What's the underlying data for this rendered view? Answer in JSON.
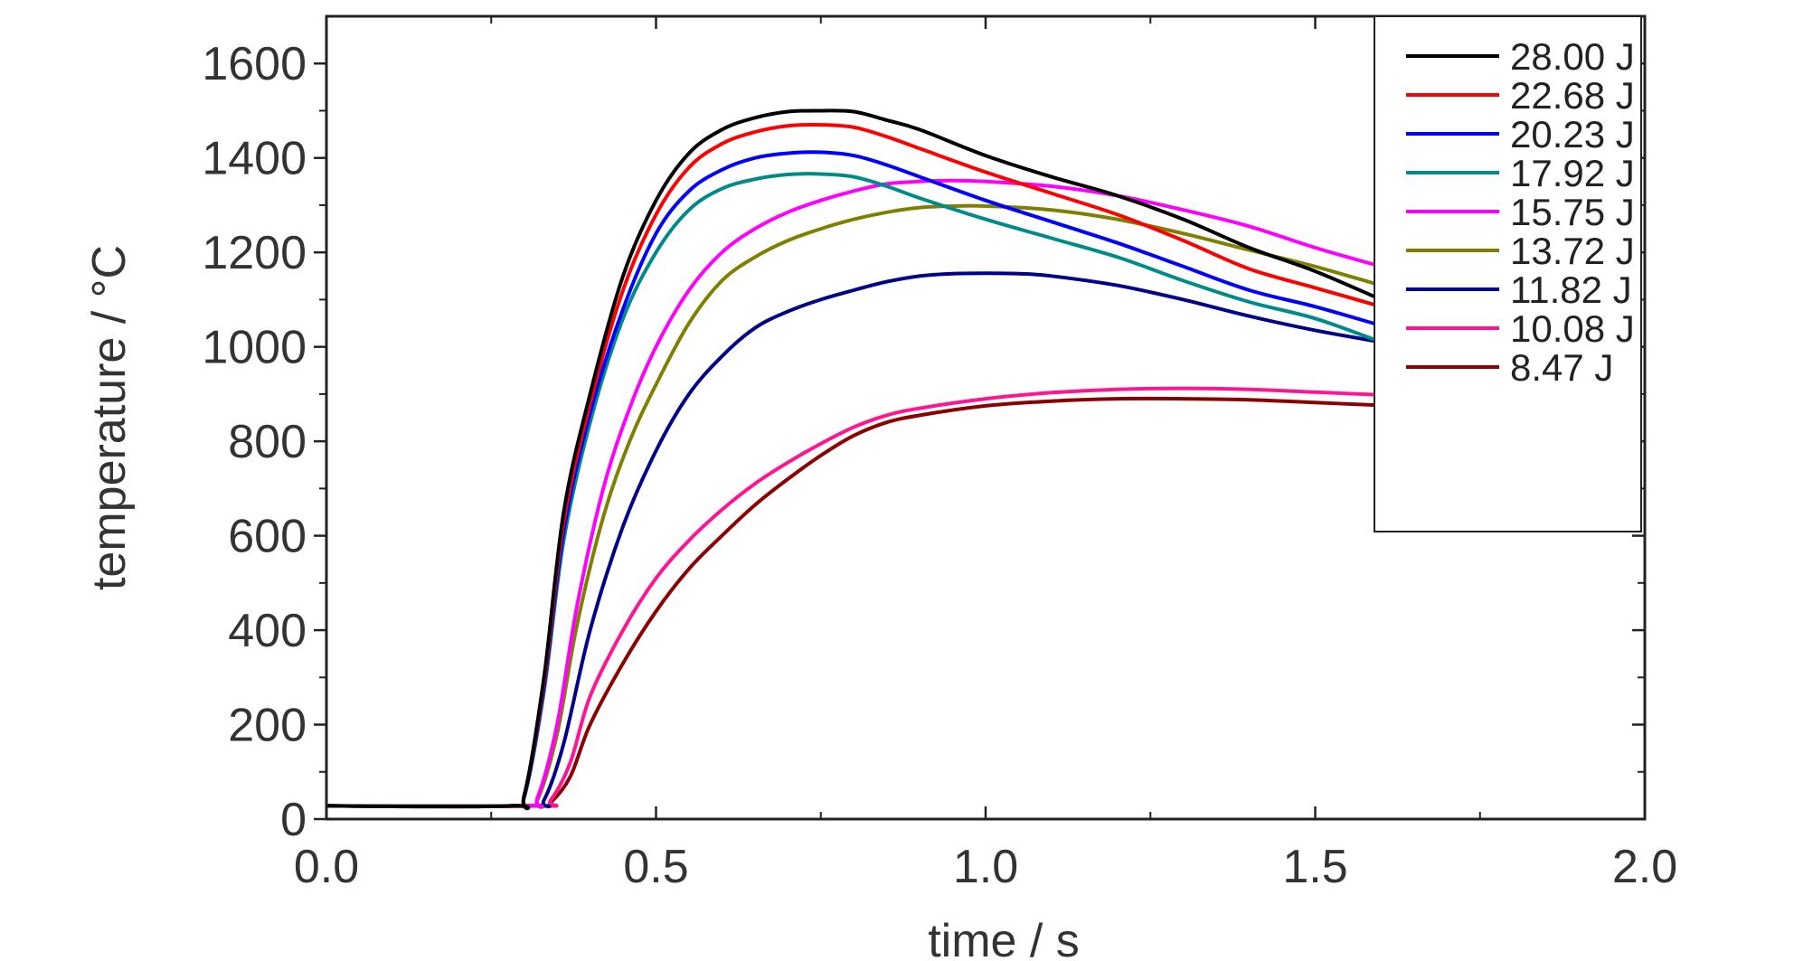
{
  "chart_data": {
    "type": "line",
    "title": "",
    "xlabel": "time / s",
    "ylabel": "temperature / °C",
    "xlim": [
      0,
      2
    ],
    "ylim": [
      0,
      1700
    ],
    "xticks": [
      0,
      0.5,
      1,
      1.5,
      2
    ],
    "xtick_labels": [
      "0.0",
      "0.5",
      "1.0",
      "1.5",
      "2.0"
    ],
    "yticks": [
      0,
      200,
      400,
      600,
      800,
      1000,
      1200,
      1400,
      1600
    ],
    "ytick_labels": [
      "0",
      "200",
      "400",
      "600",
      "800",
      "1000",
      "1200",
      "1400",
      "1600"
    ],
    "grid": false,
    "legend_position": "top-right",
    "series": [
      {
        "name": "28.00 J",
        "color": "#000000",
        "x": [
          0,
          0.28,
          0.3,
          0.33,
          0.36,
          0.4,
          0.45,
          0.5,
          0.55,
          0.6,
          0.65,
          0.7,
          0.75,
          0.8,
          0.85,
          0.9,
          1.0,
          1.1,
          1.2,
          1.3,
          1.4,
          1.5,
          1.6
        ],
        "y": [
          28,
          28,
          50,
          300,
          650,
          900,
          1150,
          1310,
          1410,
          1460,
          1485,
          1498,
          1500,
          1498,
          1480,
          1460,
          1405,
          1360,
          1320,
          1270,
          1210,
          1160,
          1100
        ]
      },
      {
        "name": "22.68 J",
        "color": "#ff0000",
        "x": [
          0,
          0.28,
          0.3,
          0.33,
          0.36,
          0.4,
          0.45,
          0.5,
          0.55,
          0.6,
          0.65,
          0.7,
          0.75,
          0.8,
          0.85,
          0.9,
          1.0,
          1.1,
          1.2,
          1.3,
          1.4,
          1.5,
          1.6
        ],
        "y": [
          28,
          28,
          50,
          290,
          630,
          880,
          1120,
          1280,
          1380,
          1430,
          1455,
          1468,
          1470,
          1465,
          1445,
          1420,
          1370,
          1325,
          1280,
          1225,
          1165,
          1125,
          1085
        ]
      },
      {
        "name": "20.23 J",
        "color": "#0000ff",
        "x": [
          0,
          0.28,
          0.3,
          0.33,
          0.36,
          0.4,
          0.45,
          0.5,
          0.55,
          0.6,
          0.65,
          0.7,
          0.75,
          0.8,
          0.85,
          0.9,
          1.0,
          1.1,
          1.2,
          1.3,
          1.4,
          1.5,
          1.6
        ],
        "y": [
          28,
          28,
          48,
          280,
          610,
          860,
          1080,
          1240,
          1330,
          1375,
          1400,
          1410,
          1412,
          1405,
          1385,
          1360,
          1310,
          1265,
          1220,
          1170,
          1120,
          1085,
          1045
        ]
      },
      {
        "name": "17.92 J",
        "color": "#008b8b",
        "x": [
          0,
          0.28,
          0.3,
          0.33,
          0.36,
          0.4,
          0.45,
          0.5,
          0.55,
          0.6,
          0.65,
          0.7,
          0.75,
          0.8,
          0.85,
          0.9,
          1.0,
          1.1,
          1.2,
          1.3,
          1.4,
          1.5,
          1.6
        ],
        "y": [
          28,
          28,
          45,
          270,
          590,
          840,
          1060,
          1200,
          1290,
          1335,
          1355,
          1365,
          1366,
          1360,
          1340,
          1315,
          1270,
          1230,
          1190,
          1140,
          1095,
          1060,
          1010
        ]
      },
      {
        "name": "15.75 J",
        "color": "#ff00ff",
        "x": [
          0,
          0.3,
          0.32,
          0.35,
          0.38,
          0.42,
          0.46,
          0.5,
          0.55,
          0.6,
          0.65,
          0.7,
          0.75,
          0.8,
          0.85,
          0.9,
          0.95,
          1.0,
          1.1,
          1.2,
          1.3,
          1.4,
          1.5,
          1.6
        ],
        "y": [
          28,
          28,
          45,
          200,
          450,
          700,
          870,
          1000,
          1120,
          1200,
          1250,
          1285,
          1310,
          1330,
          1345,
          1350,
          1352,
          1350,
          1340,
          1320,
          1290,
          1255,
          1210,
          1170
        ]
      },
      {
        "name": "13.72 J",
        "color": "#808000",
        "x": [
          0,
          0.3,
          0.32,
          0.35,
          0.38,
          0.42,
          0.46,
          0.5,
          0.55,
          0.6,
          0.65,
          0.7,
          0.75,
          0.8,
          0.85,
          0.9,
          0.95,
          1.0,
          1.1,
          1.2,
          1.3,
          1.4,
          1.5,
          1.6
        ],
        "y": [
          28,
          28,
          40,
          180,
          410,
          640,
          800,
          920,
          1050,
          1140,
          1190,
          1225,
          1250,
          1270,
          1285,
          1295,
          1298,
          1298,
          1290,
          1270,
          1240,
          1205,
          1170,
          1130
        ]
      },
      {
        "name": "11.82 J",
        "color": "#00008b",
        "x": [
          0,
          0.31,
          0.33,
          0.36,
          0.4,
          0.45,
          0.5,
          0.55,
          0.6,
          0.65,
          0.7,
          0.75,
          0.8,
          0.85,
          0.9,
          0.95,
          1.0,
          1.05,
          1.1,
          1.2,
          1.3,
          1.4,
          1.5,
          1.6
        ],
        "y": [
          28,
          28,
          40,
          160,
          400,
          620,
          780,
          900,
          980,
          1040,
          1075,
          1100,
          1120,
          1138,
          1150,
          1155,
          1156,
          1155,
          1150,
          1130,
          1100,
          1065,
          1035,
          1010
        ]
      },
      {
        "name": "10.08 J",
        "color": "#ff1493",
        "x": [
          0,
          0.32,
          0.34,
          0.37,
          0.4,
          0.45,
          0.5,
          0.55,
          0.6,
          0.65,
          0.7,
          0.75,
          0.8,
          0.85,
          0.9,
          1.0,
          1.1,
          1.2,
          1.3,
          1.4,
          1.5,
          1.6
        ],
        "y": [
          28,
          28,
          40,
          120,
          260,
          400,
          510,
          590,
          655,
          710,
          755,
          795,
          830,
          855,
          870,
          890,
          903,
          910,
          912,
          910,
          904,
          898
        ]
      },
      {
        "name": "8.47 J",
        "color": "#8b0000",
        "x": [
          0,
          0.32,
          0.34,
          0.37,
          0.4,
          0.45,
          0.5,
          0.55,
          0.6,
          0.65,
          0.7,
          0.75,
          0.8,
          0.85,
          0.9,
          1.0,
          1.1,
          1.2,
          1.3,
          1.4,
          1.5,
          1.6
        ],
        "y": [
          28,
          28,
          35,
          90,
          200,
          330,
          440,
          530,
          600,
          665,
          720,
          770,
          812,
          840,
          855,
          875,
          885,
          890,
          890,
          888,
          882,
          876
        ]
      }
    ]
  }
}
